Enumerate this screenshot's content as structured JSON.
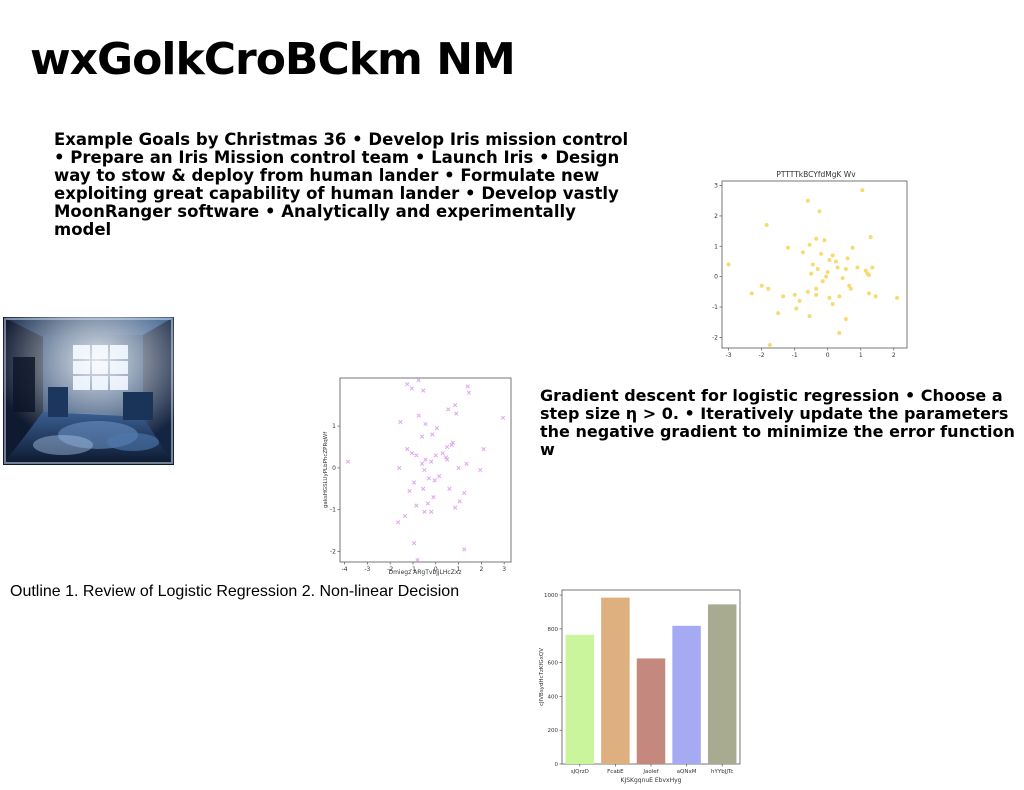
{
  "slide": {
    "title": "wxGolkCroBCkm NM",
    "goals_text": "Example Goals by Christmas 36 • Develop Iris mission control • Prepare an Iris Mission control team • Launch Iris • Design way to stow & deploy from human lander • Formulate new exploiting great capability of human lander • Develop vastly MoonRanger software • Analytically and experimentally model",
    "gradient_text": "Gradient descent for logistic regression • Choose a\nstep size η > 0. • Iteratively update the parameters\nthe negative gradient to minimize the error function w",
    "outline_text": "Outline 1. Review of Logistic Regression 2. Non-linear Decision",
    "photo_icon": "abandoned-room-photo"
  },
  "chart_data": [
    {
      "type": "scatter",
      "title": "PTTTTkBCYfdMgK Wv",
      "xlabel": "",
      "ylabel": "",
      "xlim": [
        -3.2,
        2.4
      ],
      "ylim": [
        -2.35,
        3.15
      ],
      "xticks": [
        "-3",
        "-2",
        "-1",
        "0",
        "1",
        "2"
      ],
      "yticks": [
        "-2",
        "-1",
        "0",
        "1",
        "2",
        "3"
      ],
      "marker": "circle",
      "color": "#f7d35a",
      "points": [
        [
          1.05,
          2.85
        ],
        [
          -0.6,
          2.5
        ],
        [
          -0.25,
          2.15
        ],
        [
          -1.85,
          1.7
        ],
        [
          1.3,
          1.3
        ],
        [
          -0.35,
          1.25
        ],
        [
          -0.1,
          1.2
        ],
        [
          -0.55,
          1.05
        ],
        [
          -1.2,
          0.95
        ],
        [
          0.75,
          0.95
        ],
        [
          -0.75,
          0.8
        ],
        [
          -0.2,
          0.75
        ],
        [
          0.15,
          0.7
        ],
        [
          0.6,
          0.6
        ],
        [
          0.05,
          0.55
        ],
        [
          0.25,
          0.5
        ],
        [
          -0.45,
          0.4
        ],
        [
          1.35,
          0.3
        ],
        [
          -3.0,
          0.4
        ],
        [
          0.3,
          0.3
        ],
        [
          0.9,
          0.3
        ],
        [
          -0.3,
          0.25
        ],
        [
          0.55,
          0.25
        ],
        [
          1.15,
          0.2
        ],
        [
          0.0,
          0.15
        ],
        [
          -0.5,
          0.1
        ],
        [
          1.25,
          0.05
        ],
        [
          -0.05,
          0.0
        ],
        [
          0.45,
          -0.05
        ],
        [
          1.2,
          0.1
        ],
        [
          -0.15,
          -0.15
        ],
        [
          -2.0,
          -0.3
        ],
        [
          0.65,
          -0.3
        ],
        [
          -1.8,
          -0.4
        ],
        [
          -0.35,
          -0.4
        ],
        [
          0.7,
          -0.4
        ],
        [
          -0.6,
          -0.5
        ],
        [
          -2.3,
          -0.55
        ],
        [
          1.25,
          -0.55
        ],
        [
          -1.0,
          -0.6
        ],
        [
          -0.35,
          -0.6
        ],
        [
          0.35,
          -0.65
        ],
        [
          1.45,
          -0.65
        ],
        [
          2.1,
          -0.7
        ],
        [
          0.05,
          -0.7
        ],
        [
          -0.85,
          -0.8
        ],
        [
          -1.35,
          -0.65
        ],
        [
          0.15,
          -0.9
        ],
        [
          -0.95,
          -1.05
        ],
        [
          -1.5,
          -1.2
        ],
        [
          -0.55,
          -1.3
        ],
        [
          0.55,
          -1.4
        ],
        [
          0.35,
          -1.85
        ],
        [
          -1.75,
          -2.25
        ]
      ]
    },
    {
      "type": "scatter",
      "title": "",
      "xlabel": "Dmiegz ARgTvbjjLHcZxz",
      "ylabel": "gaksHGSLUyPLbPhcZPRqWf",
      "xlim": [
        -4.2,
        3.3
      ],
      "ylim": [
        -2.25,
        2.15
      ],
      "xticks": [
        "-4",
        "-3",
        "-2",
        "-1",
        "0",
        "1",
        "2",
        "3"
      ],
      "yticks": [
        "-2",
        "-1",
        "0",
        "1"
      ],
      "marker": "cross",
      "color": "#e0a6f0",
      "points": [
        [
          -0.75,
          2.1
        ],
        [
          -1.25,
          2.0
        ],
        [
          1.4,
          1.95
        ],
        [
          -1.05,
          1.9
        ],
        [
          -0.55,
          1.85
        ],
        [
          1.45,
          1.8
        ],
        [
          0.85,
          1.5
        ],
        [
          0.55,
          1.4
        ],
        [
          0.9,
          1.3
        ],
        [
          -0.75,
          1.25
        ],
        [
          -1.55,
          1.1
        ],
        [
          2.95,
          1.2
        ],
        [
          -0.45,
          1.05
        ],
        [
          0.05,
          0.95
        ],
        [
          -0.15,
          0.8
        ],
        [
          -0.6,
          0.75
        ],
        [
          0.75,
          0.6
        ],
        [
          0.5,
          0.5
        ],
        [
          0.7,
          0.55
        ],
        [
          -1.25,
          0.45
        ],
        [
          2.1,
          0.45
        ],
        [
          -1.05,
          0.35
        ],
        [
          0.3,
          0.35
        ],
        [
          -0.85,
          0.3
        ],
        [
          0.0,
          0.3
        ],
        [
          -0.45,
          0.2
        ],
        [
          0.5,
          0.2
        ],
        [
          -0.2,
          0.15
        ],
        [
          0.45,
          0.25
        ],
        [
          -3.85,
          0.15
        ],
        [
          -0.6,
          0.1
        ],
        [
          1.35,
          0.1
        ],
        [
          -1.6,
          0.0
        ],
        [
          1.0,
          0.0
        ],
        [
          -0.5,
          -0.05
        ],
        [
          1.95,
          -0.05
        ],
        [
          0.15,
          -0.2
        ],
        [
          -0.3,
          -0.25
        ],
        [
          -0.05,
          -0.3
        ],
        [
          -0.95,
          -0.35
        ],
        [
          -0.55,
          -0.5
        ],
        [
          -1.15,
          -0.55
        ],
        [
          0.6,
          -0.5
        ],
        [
          1.25,
          -0.6
        ],
        [
          -0.1,
          -0.7
        ],
        [
          1.05,
          -0.8
        ],
        [
          -0.35,
          -0.85
        ],
        [
          -0.85,
          -0.9
        ],
        [
          0.85,
          -0.95
        ],
        [
          -0.2,
          -1.05
        ],
        [
          -0.5,
          -1.05
        ],
        [
          -1.35,
          -1.15
        ],
        [
          -1.65,
          -1.3
        ],
        [
          -0.95,
          -1.8
        ],
        [
          1.25,
          -1.95
        ],
        [
          -0.8,
          -2.2
        ]
      ]
    },
    {
      "type": "bar",
      "title": "",
      "categories": [
        "sJQrzD",
        "FcabE",
        "Jaolef",
        "aQNxM",
        "hYYbJJTc"
      ],
      "values": [
        765,
        985,
        625,
        818,
        945
      ],
      "colors": [
        "#cbf59d",
        "#dfb07f",
        "#c5887e",
        "#a6aaf3",
        "#a9ab91"
      ],
      "xlabel": "KJSKgqnuE EbvxHyg",
      "ylabel": "cJIVBsydHcTzKfGxQV",
      "ylim": [
        0,
        1030
      ],
      "yticks": [
        "0",
        "200",
        "400",
        "600",
        "800",
        "1000"
      ]
    }
  ]
}
